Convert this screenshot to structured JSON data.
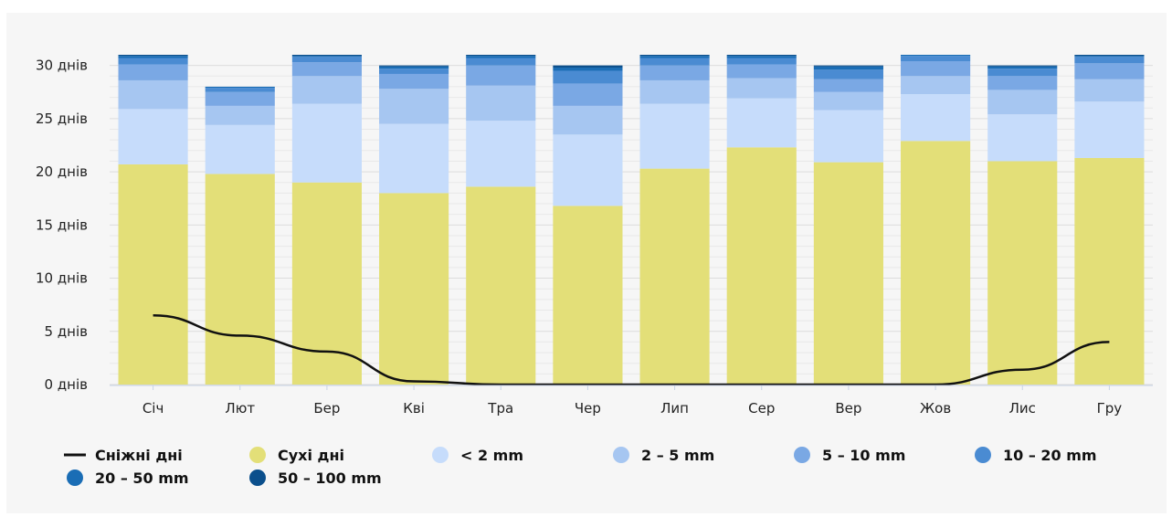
{
  "chart_data": {
    "type": "bar",
    "stacked": true,
    "categories": [
      "Січ",
      "Лют",
      "Бер",
      "Кві",
      "Тра",
      "Чер",
      "Лип",
      "Сер",
      "Вер",
      "Жов",
      "Лис",
      "Гру"
    ],
    "y_ticks": [
      "0 днів",
      "5 днів",
      "10 днів",
      "15 днів",
      "20 днів",
      "25 днів",
      "30 днів"
    ],
    "ylim": [
      0,
      31
    ],
    "grid": true,
    "legend_position": "bottom",
    "series": [
      {
        "name": "Сухі дні",
        "color": "#e3df78",
        "values": [
          20.7,
          19.8,
          19.0,
          18.0,
          18.6,
          16.8,
          20.3,
          22.3,
          20.9,
          22.9,
          21.0,
          21.3
        ]
      },
      {
        "name": "< 2 mm",
        "color": "#c6dcfb",
        "values": [
          5.2,
          4.6,
          7.4,
          6.5,
          6.2,
          6.7,
          6.1,
          4.6,
          4.9,
          4.4,
          4.4,
          5.3
        ]
      },
      {
        "name": "2 – 5 mm",
        "color": "#a6c6f1",
        "values": [
          2.7,
          1.8,
          2.6,
          3.3,
          3.3,
          2.7,
          2.2,
          1.9,
          1.7,
          1.7,
          2.3,
          2.1
        ]
      },
      {
        "name": "5 – 10 mm",
        "color": "#7aa8e4",
        "values": [
          1.5,
          1.3,
          1.3,
          1.4,
          1.9,
          2.1,
          1.4,
          1.3,
          1.2,
          1.4,
          1.3,
          1.5
        ]
      },
      {
        "name": "10 – 20 mm",
        "color": "#4a8bd2",
        "values": [
          0.6,
          0.4,
          0.5,
          0.5,
          0.7,
          1.2,
          0.7,
          0.6,
          0.9,
          0.5,
          0.7,
          0.6
        ]
      },
      {
        "name": "20 – 50 mm",
        "color": "#1a6db5",
        "values": [
          0.2,
          0.1,
          0.1,
          0.2,
          0.2,
          0.3,
          0.2,
          0.2,
          0.3,
          0.1,
          0.2,
          0.1
        ]
      },
      {
        "name": "50 – 100 mm",
        "color": "#0b4f8c",
        "values": [
          0.1,
          0.0,
          0.1,
          0.1,
          0.1,
          0.2,
          0.1,
          0.1,
          0.1,
          0.0,
          0.1,
          0.1
        ]
      }
    ],
    "line_series": {
      "name": "Снiжнi днi",
      "color": "#111111",
      "values": [
        6.5,
        4.6,
        3.1,
        0.3,
        0.0,
        0.0,
        0.0,
        0.0,
        0.0,
        0.0,
        1.4,
        4.0
      ]
    },
    "legend": [
      {
        "label": "Снiжнi днi",
        "kind": "line",
        "color": "#111111"
      },
      {
        "label": "Сухі дні",
        "kind": "dot",
        "color": "#e3df78"
      },
      {
        "label": "< 2 mm",
        "kind": "dot",
        "color": "#c6dcfb"
      },
      {
        "label": "2 – 5 mm",
        "kind": "dot",
        "color": "#a6c6f1"
      },
      {
        "label": "5 – 10 mm",
        "kind": "dot",
        "color": "#7aa8e4"
      },
      {
        "label": "10 – 20 mm",
        "kind": "dot",
        "color": "#4a8bd2"
      },
      {
        "label": "20 – 50 mm",
        "kind": "dot",
        "color": "#1a6db5"
      },
      {
        "label": "50 – 100 mm",
        "kind": "dot",
        "color": "#0b4f8c"
      }
    ]
  }
}
